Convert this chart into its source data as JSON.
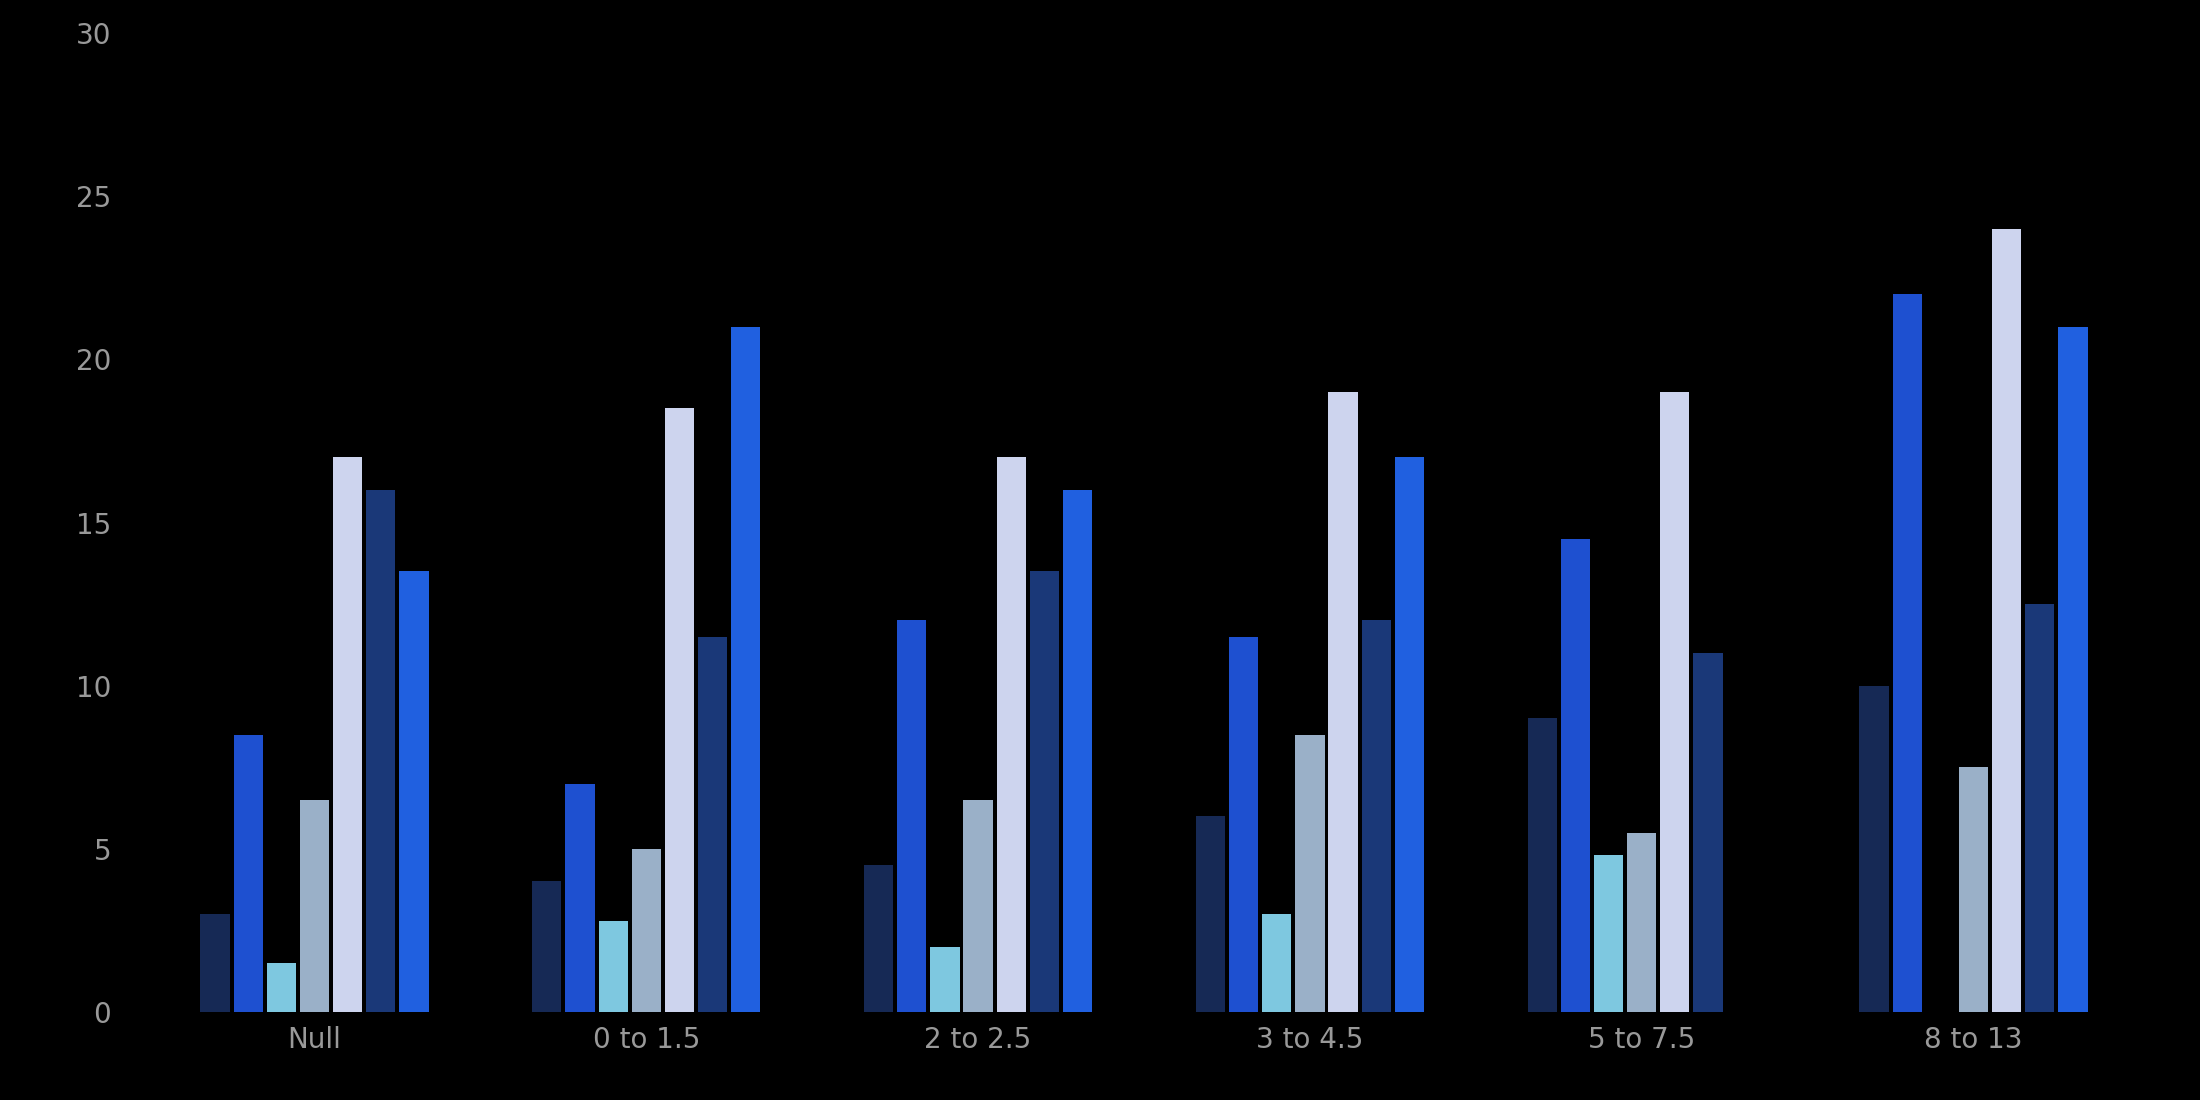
{
  "categories": [
    "Null",
    "0 to 1.5",
    "2 to 2.5",
    "3 to 4.5",
    "5 to 7.5",
    "8 to 13"
  ],
  "bar_colors": [
    "#162955",
    "#1e50d0",
    "#7ec8e0",
    "#9ab0c8",
    "#cdd4ee",
    "#1a3878",
    "#2060e0"
  ],
  "group_values": [
    [
      3,
      8.5,
      1.5,
      6.5,
      17,
      16,
      13.5
    ],
    [
      4,
      7,
      2.8,
      5,
      18.5,
      11.5,
      21
    ],
    [
      4.5,
      12,
      2,
      6.5,
      17,
      13.5,
      16
    ],
    [
      6,
      11.5,
      3,
      8.5,
      19,
      12,
      17
    ],
    [
      9,
      14.5,
      4.8,
      5.5,
      19,
      11,
      0
    ],
    [
      10,
      22,
      0,
      7.5,
      24,
      12.5,
      21
    ]
  ],
  "background_color": "#000000",
  "text_color": "#999999",
  "ylim": [
    0,
    30
  ],
  "yticks": [
    0,
    5,
    10,
    15,
    20,
    25,
    30
  ],
  "bar_width": 0.1,
  "figsize": [
    22.0,
    11.0
  ],
  "dpi": 100,
  "tick_fontsize": 20,
  "xlabel_fontsize": 20
}
